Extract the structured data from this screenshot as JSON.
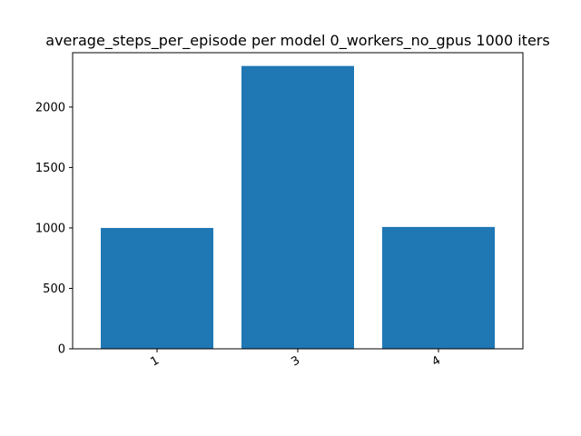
{
  "chart_data": {
    "type": "bar",
    "title": "average_steps_per_episode per model 0_workers_no_gpus 1000 iters",
    "categories": [
      "1",
      "3",
      "4"
    ],
    "values": [
      1000,
      2340,
      1008
    ],
    "xlabel": "",
    "ylabel": "",
    "ylim": [
      0,
      2450
    ],
    "yticks": [
      0,
      500,
      1000,
      1500,
      2000
    ],
    "grid": false,
    "bar_color": "#1f77b4"
  }
}
